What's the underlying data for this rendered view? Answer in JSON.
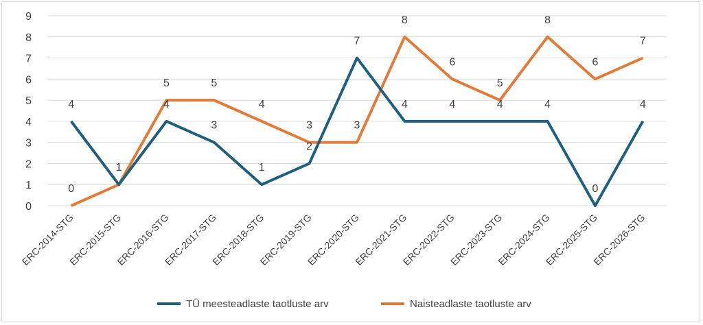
{
  "chart_data": {
    "type": "line",
    "title": "",
    "xlabel": "",
    "ylabel": "",
    "categories": [
      "ERC-2014-STG",
      "ERC-2015-STG",
      "ERC-2016-STG",
      "ERC-2017-STG",
      "ERC-2018-STG",
      "ERC-2019-STG",
      "ERC-2020-STG",
      "ERC-2021-STG",
      "ERC-2022-STG",
      "ERC-2023-STG",
      "ERC-2024-STG",
      "ERC-2025-STG",
      "ERC-2026-STG"
    ],
    "ylim": [
      0,
      9
    ],
    "yticks": [
      0,
      1,
      2,
      3,
      4,
      5,
      6,
      7,
      8,
      9
    ],
    "grid": true,
    "legend_position": "bottom",
    "series": [
      {
        "name": "TÜ meesteadlaste taotluste arv",
        "color": "#1f5f7f",
        "values": [
          4,
          1,
          4,
          3,
          1,
          2,
          7,
          4,
          4,
          4,
          4,
          0,
          4
        ]
      },
      {
        "name": "Naisteadlaste taotluste arv",
        "color": "#e07b39",
        "values": [
          0,
          1,
          5,
          5,
          4,
          3,
          3,
          8,
          6,
          5,
          8,
          6,
          7
        ]
      }
    ]
  }
}
